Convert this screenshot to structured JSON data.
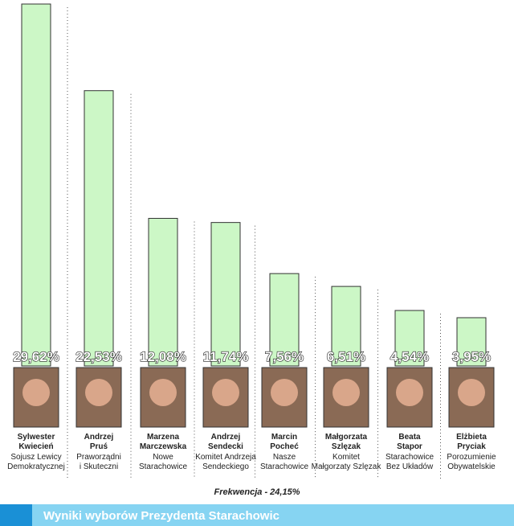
{
  "chart_data": {
    "type": "bar",
    "title": "Wyniki wyborów Prezydenta Starachowic",
    "annotation": "Frekwencja - 24,15%",
    "categories": [
      "Sylwester\nKwiecień",
      "Andrzej\nPruś",
      "Marzena\nMarczewska",
      "Andrzej\nSendecki",
      "Marcin\nPocheć",
      "Małgorzata\nSzlęzak",
      "Beata\nStapor",
      "Elżbieta\nPryciak"
    ],
    "committees": [
      "Sojusz Lewicy\nDemokratycznej",
      "Praworządni\ni Skuteczni",
      "Nowe\nStarachowice",
      "Komitet Andrzeja\nSendeckiego",
      "Nasze\nStarachowice",
      "Komitet\nMałgorzaty Szlęzak",
      "Starachowice\nBez Układów",
      "Porozumienie\nObywatelskie"
    ],
    "values": [
      29.62,
      22.53,
      12.08,
      11.74,
      7.56,
      6.51,
      4.54,
      3.95
    ],
    "value_labels": [
      "29,62%",
      "22,53%",
      "12,08%",
      "11,74%",
      "7,56%",
      "6,51%",
      "4,54%",
      "3,95%"
    ],
    "color": "#ccf7c6"
  }
}
